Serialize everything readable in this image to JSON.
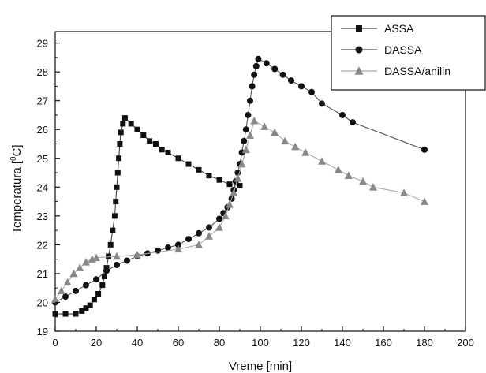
{
  "chart_data": {
    "type": "line",
    "title": "",
    "xlabel": "Vreme [min]",
    "ylabel": "Temperatura [°C]",
    "ylabel_main": "Temperatura [",
    "ylabel_sup": "0",
    "ylabel_tail": "C]",
    "xlim": [
      0,
      200
    ],
    "ylim": [
      19,
      29.4
    ],
    "xticks": [
      0,
      20,
      40,
      60,
      80,
      100,
      120,
      140,
      160,
      180,
      200
    ],
    "yticks": [
      19,
      20,
      21,
      22,
      23,
      24,
      25,
      26,
      27,
      28,
      29
    ],
    "grid": false,
    "legend_position": "top-right",
    "series": [
      {
        "name": "ASSA",
        "marker": "square",
        "color": "#111111",
        "line_color": "#444444",
        "points": [
          [
            0,
            19.6
          ],
          [
            5,
            19.6
          ],
          [
            10,
            19.6
          ],
          [
            13,
            19.7
          ],
          [
            15,
            19.8
          ],
          [
            17,
            19.9
          ],
          [
            19,
            20.1
          ],
          [
            21,
            20.3
          ],
          [
            23,
            20.6
          ],
          [
            24,
            20.9
          ],
          [
            25,
            21.2
          ],
          [
            26,
            21.6
          ],
          [
            27,
            22.0
          ],
          [
            28,
            22.5
          ],
          [
            29,
            23.0
          ],
          [
            29.5,
            23.5
          ],
          [
            30,
            24.0
          ],
          [
            30.5,
            24.5
          ],
          [
            31,
            25.0
          ],
          [
            31.5,
            25.5
          ],
          [
            32,
            25.9
          ],
          [
            33,
            26.2
          ],
          [
            34,
            26.4
          ],
          [
            37,
            26.2
          ],
          [
            40,
            26.0
          ],
          [
            43,
            25.8
          ],
          [
            46,
            25.6
          ],
          [
            49,
            25.5
          ],
          [
            52,
            25.3
          ],
          [
            55,
            25.2
          ],
          [
            60,
            25.0
          ],
          [
            65,
            24.8
          ],
          [
            70,
            24.6
          ],
          [
            75,
            24.4
          ],
          [
            80,
            24.25
          ],
          [
            85,
            24.1
          ],
          [
            90,
            24.05
          ]
        ]
      },
      {
        "name": "DASSA",
        "marker": "circle",
        "color": "#111111",
        "line_color": "#555555",
        "points": [
          [
            0,
            20.0
          ],
          [
            5,
            20.2
          ],
          [
            10,
            20.4
          ],
          [
            15,
            20.6
          ],
          [
            20,
            20.8
          ],
          [
            25,
            21.1
          ],
          [
            30,
            21.3
          ],
          [
            35,
            21.45
          ],
          [
            40,
            21.6
          ],
          [
            45,
            21.7
          ],
          [
            50,
            21.8
          ],
          [
            55,
            21.9
          ],
          [
            60,
            22.0
          ],
          [
            65,
            22.2
          ],
          [
            70,
            22.4
          ],
          [
            75,
            22.6
          ],
          [
            80,
            22.9
          ],
          [
            82,
            23.1
          ],
          [
            84,
            23.3
          ],
          [
            86,
            23.6
          ],
          [
            87,
            23.9
          ],
          [
            88,
            24.2
          ],
          [
            89,
            24.5
          ],
          [
            90,
            24.8
          ],
          [
            91,
            25.2
          ],
          [
            92,
            25.6
          ],
          [
            93,
            26.0
          ],
          [
            94,
            26.5
          ],
          [
            95,
            27.0
          ],
          [
            96,
            27.5
          ],
          [
            97,
            27.9
          ],
          [
            98,
            28.2
          ],
          [
            99,
            28.45
          ],
          [
            103,
            28.3
          ],
          [
            107,
            28.1
          ],
          [
            111,
            27.9
          ],
          [
            115,
            27.7
          ],
          [
            120,
            27.5
          ],
          [
            125,
            27.3
          ],
          [
            130,
            26.9
          ],
          [
            140,
            26.5
          ],
          [
            145,
            26.25
          ],
          [
            180,
            25.3
          ]
        ]
      },
      {
        "name": "DASSA/anilin",
        "marker": "triangle",
        "color": "#888888",
        "line_color": "#aaaaaa",
        "points": [
          [
            0,
            20.1
          ],
          [
            3,
            20.4
          ],
          [
            6,
            20.7
          ],
          [
            9,
            21.0
          ],
          [
            12,
            21.2
          ],
          [
            15,
            21.4
          ],
          [
            18,
            21.5
          ],
          [
            20,
            21.55
          ],
          [
            30,
            21.6
          ],
          [
            40,
            21.65
          ],
          [
            60,
            21.85
          ],
          [
            70,
            22.0
          ],
          [
            75,
            22.3
          ],
          [
            80,
            22.6
          ],
          [
            83,
            23.0
          ],
          [
            85,
            23.4
          ],
          [
            87,
            23.8
          ],
          [
            89,
            24.3
          ],
          [
            91,
            24.8
          ],
          [
            93,
            25.3
          ],
          [
            95,
            25.8
          ],
          [
            97,
            26.3
          ],
          [
            102,
            26.1
          ],
          [
            107,
            25.9
          ],
          [
            112,
            25.6
          ],
          [
            117,
            25.4
          ],
          [
            122,
            25.2
          ],
          [
            130,
            24.9
          ],
          [
            138,
            24.6
          ],
          [
            143,
            24.4
          ],
          [
            150,
            24.2
          ],
          [
            155,
            24.0
          ],
          [
            170,
            23.8
          ],
          [
            180,
            23.5
          ]
        ]
      }
    ]
  }
}
